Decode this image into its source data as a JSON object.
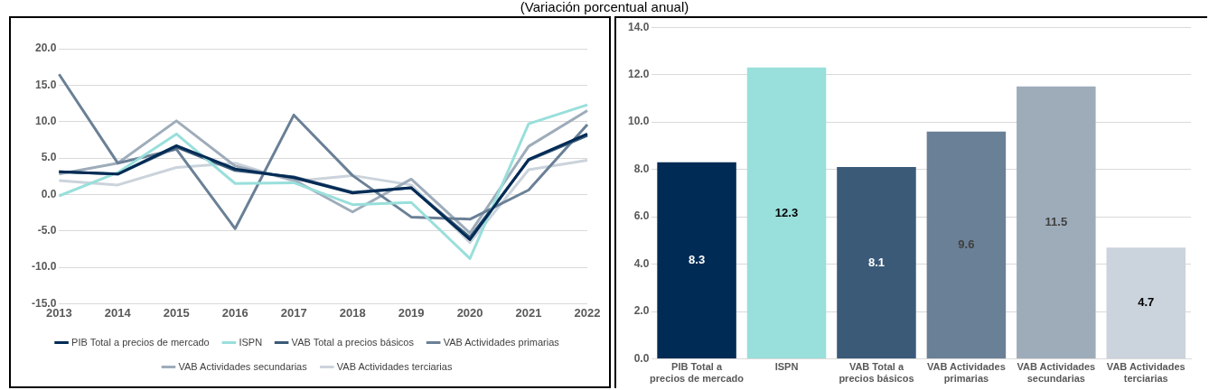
{
  "chart_data": [
    {
      "type": "line",
      "title": "(Variación porcentual anual)",
      "categories": [
        "2013",
        "2014",
        "2015",
        "2016",
        "2017",
        "2018",
        "2019",
        "2020",
        "2021",
        "2022"
      ],
      "series": [
        {
          "name": "PIB Total a precios de mercado",
          "color": "#002b55",
          "values": [
            3.1,
            2.8,
            6.7,
            3.5,
            2.3,
            0.2,
            0.9,
            -6.2,
            4.8,
            8.3
          ]
        },
        {
          "name": "ISPN",
          "color": "#99dfdb",
          "values": [
            -0.2,
            3.0,
            8.3,
            1.5,
            1.6,
            -1.4,
            -1.1,
            -8.8,
            9.7,
            12.3
          ]
        },
        {
          "name": "VAB Total a precios básicos",
          "color": "#3a5a78",
          "values": [
            3.1,
            2.8,
            6.5,
            3.3,
            2.4,
            0.3,
            0.9,
            -5.9,
            4.7,
            8.1
          ]
        },
        {
          "name": "VAB Actividades primarias",
          "color": "#6a8096",
          "values": [
            16.5,
            4.3,
            6.2,
            -4.7,
            10.9,
            2.6,
            -3.1,
            -3.4,
            0.6,
            9.6
          ]
        },
        {
          "name": "VAB Actividades secundarias",
          "color": "#9eacba",
          "values": [
            2.8,
            4.3,
            10.1,
            3.9,
            2.0,
            -2.4,
            2.1,
            -5.3,
            6.6,
            11.5
          ]
        },
        {
          "name": "VAB Actividades terciarias",
          "color": "#cbd3dc",
          "values": [
            1.9,
            1.3,
            3.7,
            4.3,
            1.8,
            2.6,
            1.3,
            -6.6,
            3.4,
            4.7
          ]
        }
      ],
      "ylim": [
        -15,
        20
      ],
      "yticks": [
        {
          "value": -15,
          "label": "-15.0"
        },
        {
          "value": -10,
          "label": "-10.0"
        },
        {
          "value": -5,
          "label": "-5.0"
        },
        {
          "value": 0,
          "label": "0.0"
        },
        {
          "value": 5,
          "label": "5.0"
        },
        {
          "value": 10,
          "label": "10.0"
        },
        {
          "value": 15,
          "label": "15.0"
        },
        {
          "value": 20,
          "label": "20.0"
        }
      ],
      "grid": "y",
      "legend": "bottom",
      "marker": "none",
      "line_style": "solid"
    },
    {
      "type": "bar",
      "categories": [
        "PIB Total a precios de mercado",
        "ISPN",
        "VAB Total a precios básicos",
        "VAB Actividades primarias",
        "VAB Actividades secundarias",
        "VAB Actividades terciarias"
      ],
      "values": [
        8.3,
        12.3,
        8.1,
        9.6,
        11.5,
        4.7
      ],
      "colors": [
        "#002b55",
        "#99dfdb",
        "#3a5a78",
        "#6a8096",
        "#9eacba",
        "#cbd3dc"
      ],
      "ylim": [
        0,
        14
      ],
      "yticks": [
        {
          "value": 0,
          "label": "0.0"
        },
        {
          "value": 2,
          "label": "2.0"
        },
        {
          "value": 4,
          "label": "4.0"
        },
        {
          "value": 6,
          "label": "6.0"
        },
        {
          "value": 8,
          "label": "8.0"
        },
        {
          "value": 10,
          "label": "10.0"
        },
        {
          "value": 12,
          "label": "12.0"
        },
        {
          "value": 14,
          "label": "14.0"
        }
      ],
      "grid": "y",
      "data_labels": true,
      "legend": false
    }
  ]
}
